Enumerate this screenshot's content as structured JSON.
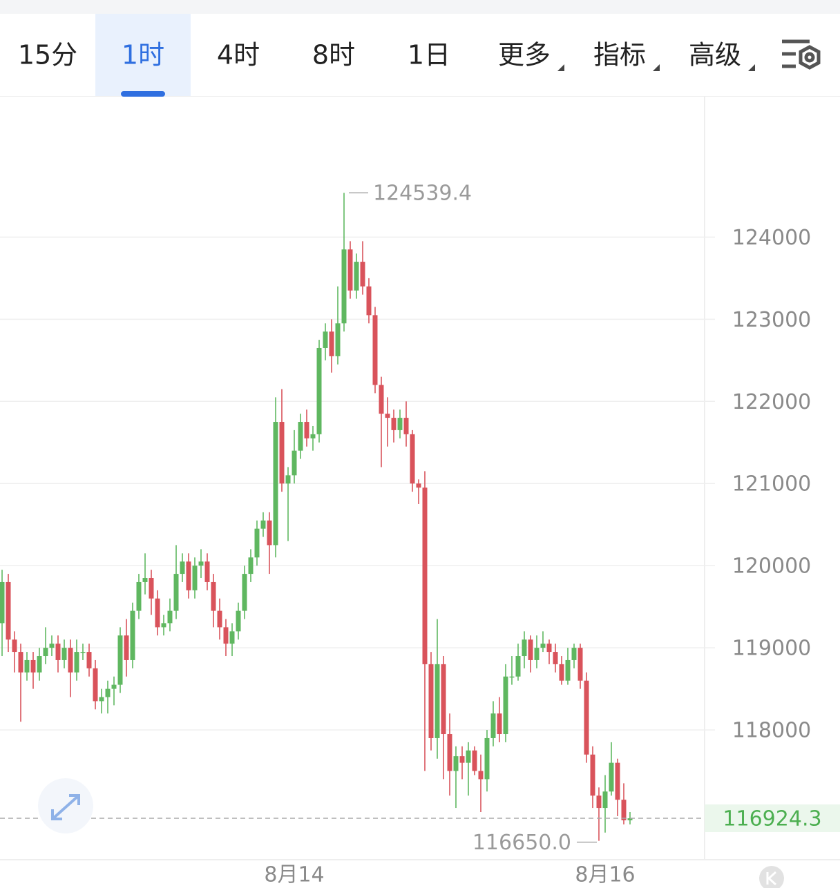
{
  "tabs": [
    "15分",
    "1时",
    "4时",
    "8时",
    "1日",
    "更多",
    "指标",
    "高级"
  ],
  "active_tab": 1,
  "chart_data": {
    "type": "candlestick",
    "up_color": "#5fb760",
    "down_color": "#d9535b",
    "categories": [
      null,
      null,
      null,
      null,
      null,
      null,
      null,
      null,
      null,
      null,
      null,
      null,
      null,
      null,
      null,
      null,
      null,
      null,
      null,
      null,
      null,
      null,
      null,
      null,
      null,
      null,
      null,
      null,
      null,
      null,
      null,
      null,
      null,
      null,
      null,
      null,
      null,
      null,
      null,
      null,
      null,
      null,
      null,
      null,
      null,
      null,
      null,
      "8月14",
      null,
      null,
      null,
      null,
      null,
      null,
      null,
      null,
      null,
      null,
      null,
      null,
      null,
      null,
      null,
      null,
      null,
      null,
      null,
      null,
      null,
      null,
      null,
      null,
      null,
      null,
      null,
      null,
      null,
      null,
      null,
      null,
      null,
      null,
      null,
      null,
      null,
      null,
      null,
      null,
      null,
      null,
      null,
      null,
      null,
      null,
      null,
      null,
      null,
      "8月16",
      null,
      null,
      null,
      null
    ],
    "open": [
      119300,
      119800,
      119100,
      118950,
      118700,
      118850,
      118700,
      118900,
      119000,
      119050,
      118850,
      119000,
      118700,
      118950,
      118950,
      118750,
      118350,
      118400,
      118500,
      118550,
      119150,
      118850,
      119450,
      119800,
      119850,
      119600,
      119250,
      119300,
      119450,
      119900,
      120050,
      119700,
      120000,
      120050,
      119800,
      119450,
      119250,
      119050,
      119200,
      119450,
      119900,
      120100,
      120450,
      120550,
      120250,
      121750,
      121000,
      121100,
      121400,
      121750,
      121550,
      121600,
      122650,
      122850,
      122550,
      122950,
      123850,
      123350,
      123700,
      123400,
      123050,
      122200,
      121850,
      121800,
      121650,
      121800,
      121600,
      121000,
      120950,
      118800,
      117900,
      118800,
      117950,
      117500,
      117680,
      117600,
      117750,
      117500,
      117400,
      117900,
      118200,
      117950,
      118650,
      118650,
      118900,
      119100,
      118850,
      119000,
      119050,
      118950,
      118800,
      118600,
      118850,
      119000,
      118600,
      117700,
      117200,
      117050,
      117250,
      117600,
      117150,
      116900
    ],
    "high": [
      119950,
      119900,
      119200,
      119050,
      118950,
      118950,
      119000,
      119250,
      119150,
      119150,
      119100,
      119100,
      119100,
      119050,
      119050,
      118850,
      118500,
      118600,
      118650,
      119250,
      119350,
      119550,
      119900,
      120150,
      119950,
      119700,
      119400,
      119600,
      120250,
      120150,
      120150,
      120100,
      120200,
      120150,
      119900,
      119600,
      119350,
      119300,
      119550,
      120000,
      120200,
      120550,
      120650,
      120650,
      122050,
      122150,
      121200,
      121650,
      121850,
      121900,
      121700,
      122750,
      122950,
      123000,
      123400,
      124539.4,
      123950,
      123800,
      123950,
      123500,
      123150,
      122300,
      122050,
      121900,
      121900,
      122000,
      121650,
      121050,
      121150,
      118950,
      119350,
      118900,
      118200,
      117800,
      117800,
      117850,
      117800,
      117700,
      118000,
      118350,
      118400,
      118800,
      118900,
      119050,
      119200,
      119150,
      119150,
      119200,
      119100,
      119050,
      118900,
      119000,
      119050,
      119050,
      118700,
      117800,
      117300,
      117450,
      117850,
      117650,
      117350,
      117000
    ],
    "low": [
      118900,
      118950,
      118700,
      118100,
      118600,
      118500,
      118600,
      118800,
      118900,
      118700,
      118750,
      118400,
      118600,
      118850,
      118650,
      118250,
      118200,
      118200,
      118300,
      118450,
      118650,
      118750,
      119350,
      119650,
      119400,
      119150,
      119150,
      119200,
      119350,
      119800,
      119600,
      119600,
      119850,
      119700,
      119250,
      119100,
      118900,
      118900,
      119100,
      119350,
      119800,
      120000,
      120350,
      119900,
      120100,
      120900,
      120300,
      121000,
      121300,
      121450,
      121400,
      121500,
      122500,
      122350,
      122450,
      122850,
      123250,
      123250,
      123300,
      122950,
      122100,
      121200,
      121450,
      121500,
      121550,
      121450,
      120900,
      120750,
      117500,
      117750,
      117650,
      117400,
      117200,
      117050,
      117400,
      117200,
      117450,
      117000,
      117250,
      117800,
      117850,
      117850,
      118550,
      118600,
      118750,
      118700,
      118750,
      118950,
      118800,
      118700,
      118550,
      118550,
      118750,
      118500,
      117600,
      117050,
      116650,
      116750,
      117200,
      116950,
      116850,
      116850
    ],
    "close": [
      119800,
      119100,
      118950,
      118700,
      118850,
      118700,
      118900,
      119000,
      119050,
      118850,
      119000,
      118700,
      118950,
      118950,
      118750,
      118350,
      118400,
      118500,
      118550,
      119150,
      118850,
      119450,
      119800,
      119850,
      119600,
      119250,
      119300,
      119450,
      119900,
      120050,
      119700,
      120000,
      120050,
      119800,
      119450,
      119250,
      119050,
      119200,
      119450,
      119900,
      120100,
      120450,
      120550,
      120250,
      121750,
      121000,
      121100,
      121400,
      121750,
      121550,
      121600,
      122650,
      122850,
      122550,
      122950,
      123850,
      123350,
      123700,
      123400,
      123050,
      122200,
      121850,
      121800,
      121650,
      121800,
      121600,
      121000,
      120950,
      118800,
      117900,
      118800,
      117950,
      117500,
      117680,
      117600,
      117750,
      117500,
      117400,
      117900,
      118200,
      117950,
      118650,
      118650,
      118900,
      119100,
      118850,
      119000,
      119050,
      118950,
      118800,
      118600,
      118850,
      119000,
      118600,
      117700,
      117200,
      117050,
      117250,
      117600,
      117150,
      116900,
      116924.3
    ],
    "ylim": [
      116420,
      125710
    ],
    "yticks": [
      118000,
      119000,
      120000,
      121000,
      122000,
      123000,
      124000
    ],
    "grid": true,
    "max_label": {
      "value": 124539.4,
      "label": "124539.4"
    },
    "min_label": {
      "value": 116650,
      "label": "116650.0"
    },
    "last_price": {
      "value": 116924.3,
      "label": "116924.3"
    }
  }
}
